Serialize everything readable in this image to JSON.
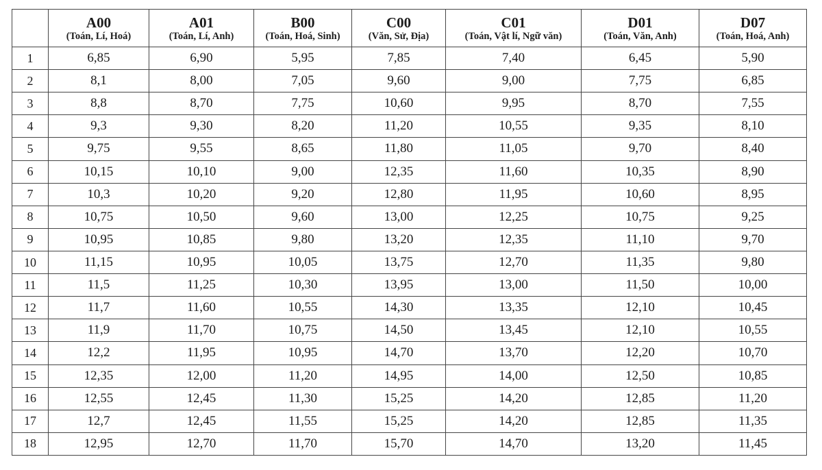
{
  "style": {
    "background_color": "#ffffff",
    "border_color": "#454545",
    "text_color": "#1c1c1c"
  },
  "chart_data": {
    "type": "table",
    "corner_label": "",
    "columns": [
      {
        "code": "A00",
        "subjects": "(Toán, Lí, Hoá)"
      },
      {
        "code": "A01",
        "subjects": "(Toán, Lí, Anh)"
      },
      {
        "code": "B00",
        "subjects": "(Toán, Hoá, Sinh)"
      },
      {
        "code": "C00",
        "subjects": "(Văn, Sử, Địa)"
      },
      {
        "code": "C01",
        "subjects": "(Toán, Vật lí, Ngữ văn)"
      },
      {
        "code": "D01",
        "subjects": "(Toán, Văn, Anh)"
      },
      {
        "code": "D07",
        "subjects": "(Toán, Hoá, Anh)"
      }
    ],
    "rows": [
      {
        "no": "1",
        "values": [
          "6,85",
          "6,90",
          "5,95",
          "7,85",
          "7,40",
          "6,45",
          "5,90"
        ]
      },
      {
        "no": "2",
        "values": [
          "8,1",
          "8,00",
          "7,05",
          "9,60",
          "9,00",
          "7,75",
          "6,85"
        ]
      },
      {
        "no": "3",
        "values": [
          "8,8",
          "8,70",
          "7,75",
          "10,60",
          "9,95",
          "8,70",
          "7,55"
        ]
      },
      {
        "no": "4",
        "values": [
          "9,3",
          "9,30",
          "8,20",
          "11,20",
          "10,55",
          "9,35",
          "8,10"
        ]
      },
      {
        "no": "5",
        "values": [
          "9,75",
          "9,55",
          "8,65",
          "11,80",
          "11,05",
          "9,70",
          "8,40"
        ]
      },
      {
        "no": "6",
        "values": [
          "10,15",
          "10,10",
          "9,00",
          "12,35",
          "11,60",
          "10,35",
          "8,90"
        ]
      },
      {
        "no": "7",
        "values": [
          "10,3",
          "10,20",
          "9,20",
          "12,80",
          "11,95",
          "10,60",
          "8,95"
        ]
      },
      {
        "no": "8",
        "values": [
          "10,75",
          "10,50",
          "9,60",
          "13,00",
          "12,25",
          "10,75",
          "9,25"
        ]
      },
      {
        "no": "9",
        "values": [
          "10,95",
          "10,85",
          "9,80",
          "13,20",
          "12,35",
          "11,10",
          "9,70"
        ]
      },
      {
        "no": "10",
        "values": [
          "11,15",
          "10,95",
          "10,05",
          "13,75",
          "12,70",
          "11,35",
          "9,80"
        ]
      },
      {
        "no": "11",
        "values": [
          "11,5",
          "11,25",
          "10,30",
          "13,95",
          "13,00",
          "11,50",
          "10,00"
        ]
      },
      {
        "no": "12",
        "values": [
          "11,7",
          "11,60",
          "10,55",
          "14,30",
          "13,35",
          "12,10",
          "10,45"
        ]
      },
      {
        "no": "13",
        "values": [
          "11,9",
          "11,70",
          "10,75",
          "14,50",
          "13,45",
          "12,10",
          "10,55"
        ]
      },
      {
        "no": "14",
        "values": [
          "12,2",
          "11,95",
          "10,95",
          "14,70",
          "13,70",
          "12,20",
          "10,70"
        ]
      },
      {
        "no": "15",
        "values": [
          "12,35",
          "12,00",
          "11,20",
          "14,95",
          "14,00",
          "12,50",
          "10,85"
        ]
      },
      {
        "no": "16",
        "values": [
          "12,55",
          "12,45",
          "11,30",
          "15,25",
          "14,20",
          "12,85",
          "11,20"
        ]
      },
      {
        "no": "17",
        "values": [
          "12,7",
          "12,45",
          "11,55",
          "15,25",
          "14,20",
          "12,85",
          "11,35"
        ]
      },
      {
        "no": "18",
        "values": [
          "12,95",
          "12,70",
          "11,70",
          "15,70",
          "14,70",
          "13,20",
          "11,45"
        ]
      }
    ]
  }
}
